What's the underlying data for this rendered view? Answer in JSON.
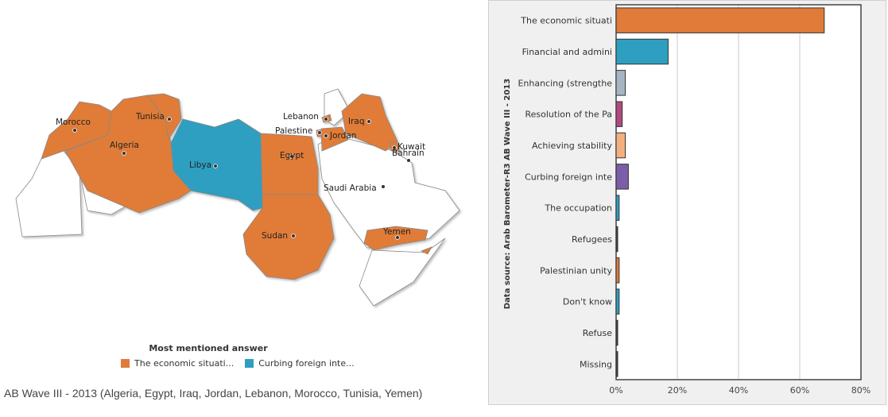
{
  "map": {
    "colors": {
      "economic": "#e07b39",
      "curbing": "#2e9fc0",
      "other": "#ffffff"
    },
    "countries": [
      {
        "name": "Morocco",
        "answer": "economic"
      },
      {
        "name": "Algeria",
        "answer": "economic"
      },
      {
        "name": "Tunisia",
        "answer": "economic"
      },
      {
        "name": "Libya",
        "answer": "curbing"
      },
      {
        "name": "Egypt",
        "answer": "economic"
      },
      {
        "name": "Sudan",
        "answer": "economic"
      },
      {
        "name": "Lebanon",
        "answer": "economic"
      },
      {
        "name": "Palestine",
        "answer": "economic"
      },
      {
        "name": "Jordan",
        "answer": "economic"
      },
      {
        "name": "Iraq",
        "answer": "economic"
      },
      {
        "name": "Kuwait",
        "answer": "economic"
      },
      {
        "name": "Bahrain",
        "answer": "other"
      },
      {
        "name": "Saudi Arabia",
        "answer": "other"
      },
      {
        "name": "Yemen",
        "answer": "economic"
      }
    ],
    "legend_title": "Most mentioned answer",
    "legend_items": [
      {
        "label": "The economic situati...",
        "color": "#e07b39"
      },
      {
        "label": "Curbing foreign inte...",
        "color": "#2e9fc0"
      }
    ]
  },
  "caption": "AB Wave III - 2013 (Algeria, Egypt, Iraq, Jordan, Lebanon, Morocco, Tunisia, Yemen)",
  "chart_data": {
    "type": "bar",
    "orientation": "horizontal",
    "ylabel": "Data source: Arab Barometer-R3 AB Wave III - 2013",
    "categories": [
      "The economic situati",
      "Financial and admini",
      "Enhancing (strengthe",
      "Resolution of the Pa",
      "Achieving stability",
      "Curbing foreign inte",
      "The occupation",
      "Refugees",
      "Palestinian unity",
      "Don't know",
      "Refuse",
      "Missing"
    ],
    "values": [
      68,
      17,
      3,
      2,
      3,
      4,
      1,
      0.3,
      1,
      1,
      0.3,
      0.3
    ],
    "colors": [
      "#e07b39",
      "#2e9fc0",
      "#a6b5c3",
      "#b04a80",
      "#f3b07e",
      "#7a5ea7",
      "#2e9fc0",
      "#444444",
      "#e07b39",
      "#2e9fc0",
      "#444444",
      "#444444"
    ],
    "xlim": [
      0,
      80
    ],
    "xticks": [
      "0%",
      "20%",
      "40%",
      "60%",
      "80%"
    ],
    "grid": true
  }
}
